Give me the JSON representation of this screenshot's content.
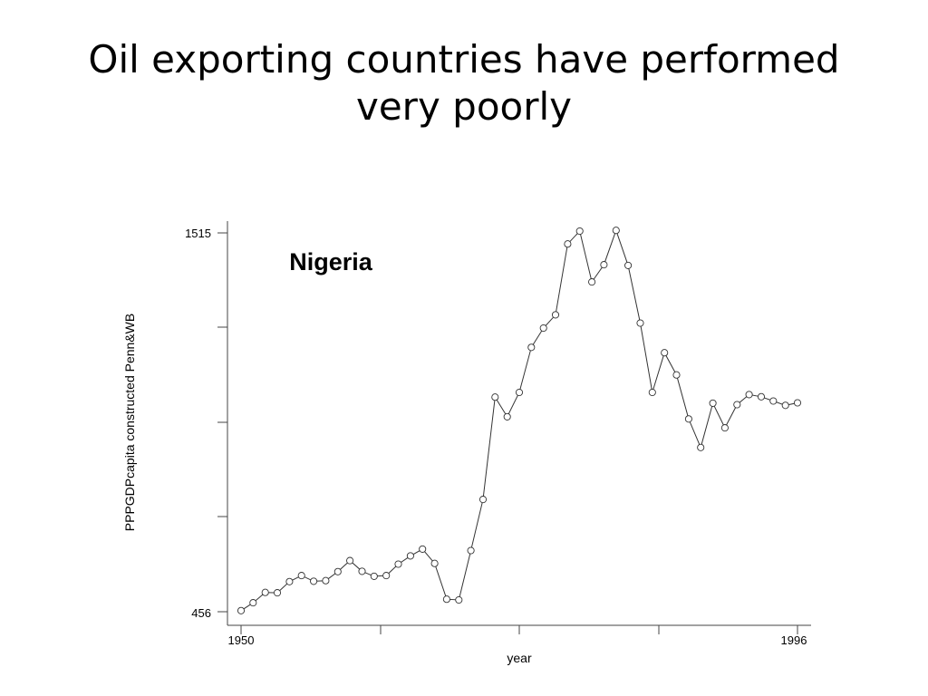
{
  "slide": {
    "title_line1": "Oil exporting countries have performed",
    "title_line2": "very poorly"
  },
  "chart_data": {
    "type": "line",
    "title": "",
    "annotation": "Nigeria",
    "xlabel": "year",
    "ylabel": "PPPGDPcapita constructed Penn&WB",
    "x_tick_labels": [
      "1950",
      "1996"
    ],
    "y_tick_labels": [
      "1515",
      "456"
    ],
    "xlim": [
      1950,
      1996
    ],
    "ylim": [
      456,
      1515
    ],
    "markers": "open-circle",
    "grid": false,
    "series": [
      {
        "x": [
          1950,
          1951,
          1952,
          1953,
          1954,
          1955,
          1956,
          1957,
          1958,
          1959,
          1960,
          1961,
          1962,
          1963,
          1964,
          1965,
          1966,
          1967,
          1968,
          1969,
          1970,
          1971,
          1972,
          1973,
          1974,
          1975,
          1976,
          1977,
          1978,
          1979,
          1980,
          1981,
          1982,
          1983,
          1984,
          1985,
          1986,
          1987,
          1988,
          1989,
          1990,
          1991,
          1992,
          1993,
          1994,
          1995,
          1996
        ],
        "values": [
          459,
          481,
          510,
          509,
          540,
          557,
          541,
          543,
          568,
          599,
          569,
          555,
          557,
          589,
          612,
          631,
          591,
          491,
          489,
          627,
          770,
          1056,
          1001,
          1069,
          1195,
          1249,
          1286,
          1484,
          1520,
          1378,
          1426,
          1522,
          1424,
          1263,
          1069,
          1180,
          1118,
          995,
          915,
          1039,
          970,
          1035,
          1063,
          1057,
          1045,
          1033,
          1040
        ]
      }
    ]
  }
}
